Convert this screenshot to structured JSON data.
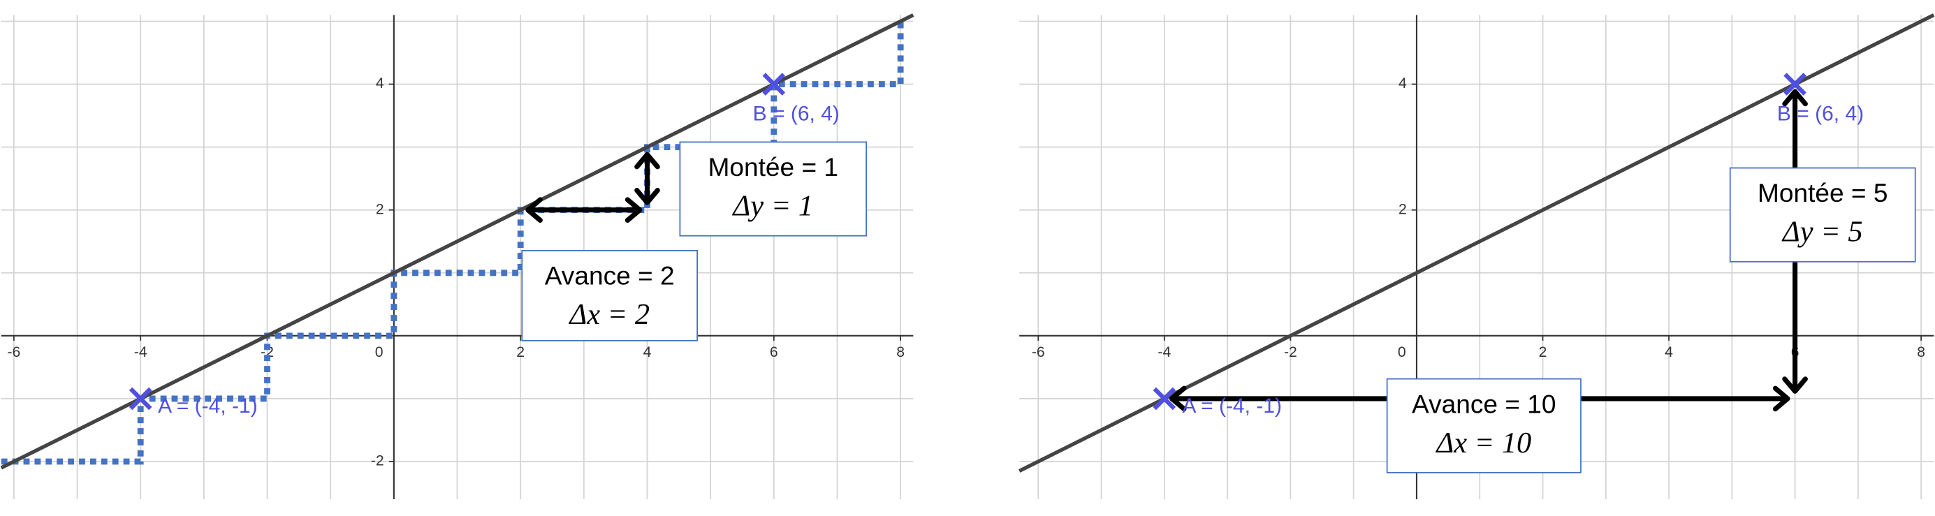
{
  "chart_data": [
    {
      "type": "line",
      "color": "#444444",
      "x": [
        -6.2,
        8.2
      ],
      "values": [
        -2.1,
        5.1
      ],
      "xlim": [
        -6.2,
        8.2
      ],
      "ylim": [
        -2.6,
        5.1
      ],
      "xticks": [
        -6,
        -4,
        -2,
        0,
        2,
        4,
        6,
        8
      ],
      "yticks": [
        -2,
        2,
        4
      ],
      "grid": true,
      "grid_step": 1,
      "staircase": {
        "color": "#4472c4",
        "x": [
          -6.2,
          -4,
          -4,
          -2,
          -2,
          0,
          0,
          2,
          2,
          4,
          4,
          6,
          6,
          8,
          8
        ],
        "values": [
          -2,
          -2,
          -1,
          -1,
          0,
          0,
          1,
          1,
          2,
          2,
          3,
          3,
          4,
          4,
          5
        ]
      },
      "points": [
        {
          "label": "A = (-4, -1)",
          "x": -4,
          "y": -1,
          "color": "#5050e0"
        },
        {
          "label": "B = (6, 4)",
          "x": 6,
          "y": 4,
          "color": "#5050e0"
        }
      ],
      "arrows": [
        {
          "from": [
            2,
            2
          ],
          "to": [
            4,
            2
          ]
        },
        {
          "from": [
            4,
            2
          ],
          "to": [
            4,
            3
          ]
        }
      ],
      "annotations": [
        {
          "lines": [
            "Montée = 1",
            "Δy = 1"
          ]
        },
        {
          "lines": [
            "Avance = 2",
            "Δx = 2"
          ]
        }
      ]
    },
    {
      "type": "line",
      "color": "#444444",
      "x": [
        -6.3,
        8.2
      ],
      "values": [
        -2.15,
        5.1
      ],
      "xlim": [
        -6.3,
        8.2
      ],
      "ylim": [
        -2.6,
        5.1
      ],
      "xticks": [
        -6,
        -4,
        -2,
        0,
        2,
        4,
        6,
        8
      ],
      "yticks": [
        -2,
        2,
        4
      ],
      "grid": true,
      "grid_step": 1,
      "points": [
        {
          "label": "A = (-4, -1)",
          "x": -4,
          "y": -1,
          "color": "#5050e0"
        },
        {
          "label": "B = (6, 4)",
          "x": 6,
          "y": 4,
          "color": "#5050e0"
        }
      ],
      "arrows": [
        {
          "from": [
            -4,
            -1
          ],
          "to": [
            6,
            -1
          ]
        },
        {
          "from": [
            6,
            4
          ],
          "to": [
            6,
            -1
          ]
        }
      ],
      "annotations": [
        {
          "lines": [
            "Montée = 5",
            "Δy = 5"
          ]
        },
        {
          "lines": [
            "Avance = 10",
            "Δx = 10"
          ]
        }
      ]
    }
  ]
}
